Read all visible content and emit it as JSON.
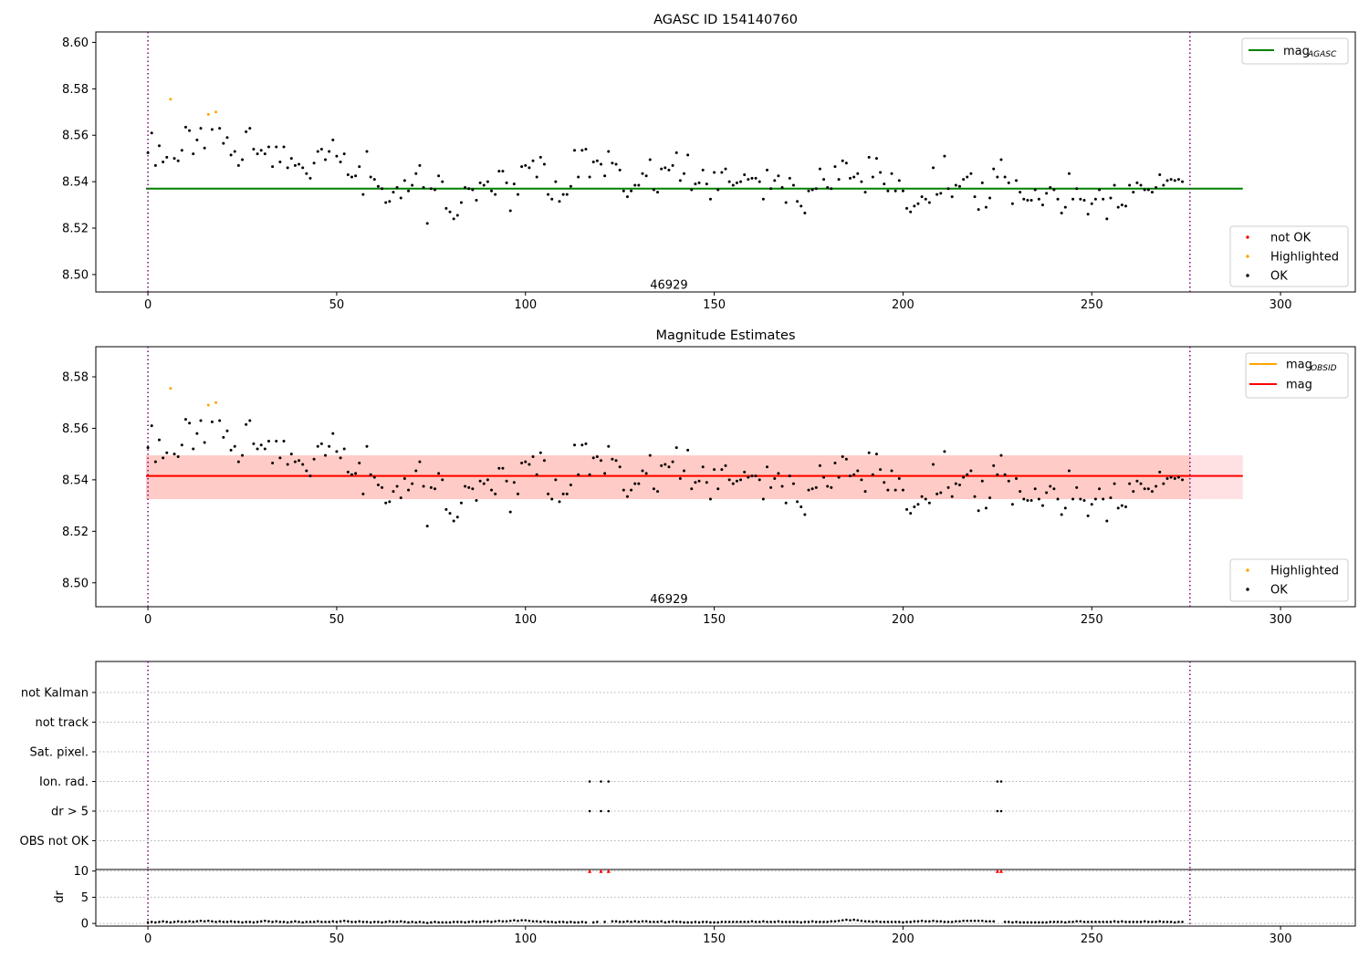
{
  "chart_data": [
    {
      "type": "scatter",
      "title": "AGASC ID 154140760",
      "xlim": [
        -13.8,
        319.8
      ],
      "ylim": [
        8.4925,
        8.6045
      ],
      "xticks": [
        0,
        50,
        100,
        150,
        200,
        250,
        300
      ],
      "xtick_labels": [
        "0",
        "50",
        "100",
        "150",
        "200",
        "250",
        "300"
      ],
      "yticks": [
        8.5,
        8.52,
        8.54,
        8.56,
        8.58,
        8.6
      ],
      "ytick_labels": [
        "8.50",
        "8.52",
        "8.54",
        "8.56",
        "8.58",
        "8.60"
      ],
      "annotations": [
        {
          "text": "46929",
          "x": 138,
          "y": 8.4955
        }
      ],
      "vlines": [
        0,
        276
      ],
      "hline": {
        "name": "mag AGASC",
        "value": 8.537,
        "color": "#008000",
        "x": [
          -0.5,
          290
        ]
      },
      "legend_lines": [
        {
          "label": "mag",
          "sub": "AGASC",
          "color": "#008000"
        }
      ],
      "legend_points": [
        {
          "label": "not OK",
          "color": "#ff0000"
        },
        {
          "label": "Highlighted",
          "color": "#ffa500"
        },
        {
          "label": "OK",
          "color": "#000000"
        }
      ],
      "series": [
        {
          "name": "OK",
          "color": "#000000",
          "x": [],
          "y": []
        },
        {
          "name": "Highlighted",
          "color": "#ffa500",
          "x": [
            6,
            16,
            18
          ],
          "y": [
            8.5755,
            8.569,
            8.57
          ]
        }
      ]
    },
    {
      "type": "scatter",
      "title": "Magnitude Estimates",
      "xlim": [
        -13.8,
        319.8
      ],
      "ylim": [
        8.4907,
        8.5917
      ],
      "xticks": [
        0,
        50,
        100,
        150,
        200,
        250,
        300
      ],
      "xtick_labels": [
        "0",
        "50",
        "100",
        "150",
        "200",
        "250",
        "300"
      ],
      "yticks": [
        8.5,
        8.52,
        8.54,
        8.56,
        8.58
      ],
      "ytick_labels": [
        "8.50",
        "8.52",
        "8.54",
        "8.56",
        "8.58"
      ],
      "annotations": [
        {
          "text": "46929",
          "x": 138,
          "y": 8.4935
        }
      ],
      "vlines": [
        0,
        276
      ],
      "lines": [
        {
          "name": "mag OBSID",
          "value": 8.5415,
          "color": "#ffa500",
          "x": [
            -0.5,
            276
          ]
        },
        {
          "name": "mag",
          "value": 8.5415,
          "color": "#ff0000",
          "x": [
            -0.5,
            290
          ]
        }
      ],
      "bands": [
        {
          "color": "#ffa07a",
          "opacity": 0.28,
          "x": [
            -0.5,
            276
          ],
          "y": [
            8.5325,
            8.5495
          ]
        },
        {
          "color": "#ff7080",
          "opacity": 0.22,
          "x": [
            -0.5,
            290
          ],
          "y": [
            8.5325,
            8.5495
          ]
        }
      ],
      "legend_lines": [
        {
          "label": "mag",
          "sub": "OBSID",
          "color": "#ffa500"
        },
        {
          "label": "mag",
          "sub": "",
          "color": "#ff0000"
        }
      ],
      "legend_points": [
        {
          "label": "Highlighted",
          "color": "#ffa500"
        },
        {
          "label": "OK",
          "color": "#000000"
        }
      ],
      "series": [
        {
          "name": "OK",
          "color": "#000000",
          "x": [],
          "y": []
        },
        {
          "name": "Highlighted",
          "color": "#ffa500",
          "x": [
            6,
            16,
            18
          ],
          "y": [
            8.5755,
            8.569,
            8.57
          ]
        }
      ]
    },
    {
      "type": "scatter",
      "title": "",
      "xlim": [
        -13.8,
        319.8
      ],
      "categories": [
        "OBS not OK",
        "dr > 5",
        "Ion. rad.",
        "Sat. pixel.",
        "not track",
        "not Kalman"
      ],
      "vlines": [
        0,
        276
      ],
      "series": [
        {
          "name": "dr > 5",
          "color": "#000000",
          "x": [
            117,
            120,
            122,
            225,
            226
          ]
        },
        {
          "name": "Ion. rad.",
          "color": "#000000",
          "x": [
            117,
            120,
            122,
            225,
            226
          ]
        }
      ]
    },
    {
      "type": "scatter",
      "title": "",
      "ylabel": "dr",
      "xlim": [
        -13.8,
        319.8
      ],
      "ylim": [
        -0.5,
        10.3
      ],
      "xticks": [
        0,
        50,
        100,
        150,
        200,
        250,
        300
      ],
      "xtick_labels": [
        "0",
        "50",
        "100",
        "150",
        "200",
        "250",
        "300"
      ],
      "yticks": [
        0,
        5,
        10
      ],
      "ytick_labels": [
        "0",
        "5",
        "10"
      ],
      "vlines": [
        0,
        276
      ],
      "series": [
        {
          "name": "dr",
          "color": "#000000",
          "x": [],
          "y": []
        },
        {
          "name": "dr > 10",
          "color": "#ff0000",
          "marker": "triangle",
          "x": [
            117,
            120,
            122,
            225,
            226
          ],
          "y": [
            10,
            10,
            10,
            10,
            10
          ]
        }
      ]
    }
  ],
  "mag_series": [
    8.5525,
    8.561,
    8.547,
    8.5555,
    8.5485,
    8.5505,
    8.5555,
    8.55,
    8.549,
    8.5535,
    8.5635,
    8.562,
    8.552,
    8.558,
    8.563,
    8.5545,
    8.556,
    8.5625,
    8.559,
    8.563,
    8.5565,
    8.559,
    8.5515,
    8.553,
    8.547,
    8.5495,
    8.5615,
    8.563,
    8.554,
    8.552,
    8.5535,
    8.552,
    8.555,
    8.5465,
    8.555,
    8.5485,
    8.555,
    8.546,
    8.55,
    8.547,
    8.5475,
    8.546,
    8.5435,
    8.5415,
    8.548,
    8.553,
    8.554,
    8.5495,
    8.553,
    8.558,
    8.551,
    8.5485,
    8.552,
    8.543,
    8.542,
    8.5425,
    8.5465,
    8.5345,
    8.553,
    8.542,
    8.541,
    8.538,
    8.537,
    8.531,
    8.5315,
    8.5355,
    8.5375,
    8.533,
    8.5405,
    8.536,
    8.5385,
    8.5435,
    8.547,
    8.5375,
    8.522,
    8.537,
    8.5365,
    8.5425,
    8.54,
    8.5285,
    8.527,
    8.524,
    8.5255,
    8.531,
    8.5375,
    8.537,
    8.5365,
    8.532,
    8.5395,
    8.5385,
    8.54,
    8.536,
    8.5345,
    8.5445,
    8.5445,
    8.5395,
    8.5275,
    8.539,
    8.5345,
    8.5465,
    8.547,
    8.546,
    8.549,
    8.542,
    8.5505,
    8.5475,
    8.5345,
    8.5325,
    8.54,
    8.5315,
    8.5345,
    8.5345,
    8.538,
    8.5535,
    8.542,
    8.5535,
    8.554,
    8.542,
    8.5485,
    8.549,
    8.5475,
    8.5425,
    8.553,
    8.548,
    8.5475,
    8.545,
    8.536,
    8.5335,
    8.536,
    8.5385,
    8.5385,
    8.5435,
    8.5425,
    8.5495,
    8.5365,
    8.5355,
    8.5455,
    8.546,
    8.545,
    8.547,
    8.5525,
    8.5405,
    8.5435,
    8.5515,
    8.5365,
    8.539,
    8.5395,
    8.545,
    8.539,
    8.5325,
    8.544,
    8.5365,
    8.544,
    8.5455,
    8.54,
    8.5385,
    8.5395,
    8.54,
    8.543,
    8.541,
    8.5415,
    8.5415,
    8.54,
    8.5325,
    8.545,
    8.537,
    8.5405,
    8.5425,
    8.5375,
    8.531,
    8.5415,
    8.5385,
    8.5315,
    8.5295,
    8.5265,
    8.536,
    8.5365,
    8.537,
    8.5455,
    8.541,
    8.5375,
    8.537,
    8.5465,
    8.541,
    8.549,
    8.548,
    8.5415,
    8.542,
    8.5435,
    8.54,
    8.5355,
    8.5505,
    8.542,
    8.55,
    8.544,
    8.539,
    8.536,
    8.5435,
    8.536,
    8.5405,
    8.536,
    8.5285,
    8.527,
    8.5295,
    8.5305,
    8.5335,
    8.5325,
    8.531,
    8.546,
    8.5345,
    8.535,
    8.551,
    8.537,
    8.5335,
    8.5385,
    8.538,
    8.541,
    8.542,
    8.5435,
    8.5335,
    8.528,
    8.5395,
    8.529,
    8.533,
    8.5455,
    8.542,
    8.5495,
    8.542,
    8.5395,
    8.5305,
    8.5405,
    8.5355,
    8.5325,
    8.532,
    8.532,
    8.5365,
    8.5325,
    8.53,
    8.535,
    8.5375,
    8.5365,
    8.5325,
    8.5265,
    8.529,
    8.5435,
    8.5325,
    8.537,
    8.5325,
    8.532,
    8.526,
    8.5305,
    8.5325,
    8.5365,
    8.5325,
    8.524,
    8.533,
    8.5385,
    8.529,
    8.53,
    8.5295,
    8.5385,
    8.5355,
    8.5395,
    8.5385,
    8.5365,
    8.5365,
    8.5355,
    8.5375,
    8.543,
    8.5385,
    8.5405,
    8.541,
    8.5405,
    8.541,
    8.54
  ],
  "dr_series": [
    0.2,
    0.3,
    0.2,
    0.3,
    0.4,
    0.3,
    0.2,
    0.3,
    0.4,
    0.3,
    0.3,
    0.4,
    0.3,
    0.4,
    0.5,
    0.4,
    0.5,
    0.4,
    0.3,
    0.4,
    0.3,
    0.3,
    0.4,
    0.3,
    0.3,
    0.2,
    0.3,
    0.3,
    0.2,
    0.3,
    0.4,
    0.5,
    0.4,
    0.3,
    0.4,
    0.3,
    0.3,
    0.2,
    0.3,
    0.4,
    0.3,
    0.2,
    0.3,
    0.3,
    0.3,
    0.4,
    0.3,
    0.3,
    0.3,
    0.4,
    0.3,
    0.4,
    0.5,
    0.4,
    0.3,
    0.3,
    0.4,
    0.3,
    0.3,
    0.2,
    0.3,
    0.3,
    0.2,
    0.3,
    0.4,
    0.3,
    0.3,
    0.4,
    0.3,
    0.2,
    0.3,
    0.2,
    0.3,
    0.2,
    0.1,
    0.2,
    0.3,
    0.2,
    0.2,
    0.2,
    0.2,
    0.3,
    0.3,
    0.3,
    0.2,
    0.3,
    0.4,
    0.3,
    0.3,
    0.4,
    0.4,
    0.3,
    0.4,
    0.5,
    0.4,
    0.4,
    0.5,
    0.6,
    0.5,
    0.6,
    0.6,
    0.5,
    0.4,
    0.4,
    0.3,
    0.4,
    0.3,
    0.3,
    0.2,
    0.3,
    0.3,
    0.2,
    0.3,
    0.2,
    0.2,
    0.3,
    0.2,
    0.3,
    0.2,
    0.3,
    0.3,
    0.3,
    0.3,
    0.4,
    0.4,
    0.3,
    0.3,
    0.4,
    0.3,
    0.4,
    0.3,
    0.4,
    0.4,
    0.3,
    0.3,
    0.3,
    0.4,
    0.2,
    0.3,
    0.4,
    0.3,
    0.3,
    0.2,
    0.2,
    0.2,
    0.3,
    0.2,
    0.3,
    0.3,
    0.2,
    0.2,
    0.2,
    0.3,
    0.3,
    0.3,
    0.3,
    0.3,
    0.3,
    0.3,
    0.3,
    0.4,
    0.3,
    0.3,
    0.4,
    0.3,
    0.3,
    0.3,
    0.4,
    0.3,
    0.3,
    0.3,
    0.3,
    0.3,
    0.2,
    0.3,
    0.3,
    0.4,
    0.3,
    0.3,
    0.3,
    0.3,
    0.4,
    0.4,
    0.5,
    0.6,
    0.7,
    0.6,
    0.7,
    0.6,
    0.5,
    0.4,
    0.4,
    0.3,
    0.4,
    0.3,
    0.3,
    0.3,
    0.3,
    0.3,
    0.3,
    0.2,
    0.3,
    0.3,
    0.4,
    0.4,
    0.5,
    0.4,
    0.4,
    0.5,
    0.4,
    0.4,
    0.3,
    0.3,
    0.3,
    0.4,
    0.4,
    0.5,
    0.5,
    0.5,
    0.5,
    0.5,
    0.5,
    0.4,
    0.4,
    0.4,
    0.3,
    0.2,
    0.3,
    0.3,
    0.2,
    0.3,
    0.2,
    0.2,
    0.2,
    0.2,
    0.2,
    0.2,
    0.2,
    0.2,
    0.3,
    0.3,
    0.3,
    0.3,
    0.2,
    0.3,
    0.3,
    0.4,
    0.4,
    0.3,
    0.3,
    0.3,
    0.3,
    0.3,
    0.3,
    0.3,
    0.3,
    0.4,
    0.3,
    0.4,
    0.3,
    0.3,
    0.3,
    0.3,
    0.3,
    0.4,
    0.3,
    0.3,
    0.3,
    0.4,
    0.3,
    0.3,
    0.3,
    0.2,
    0.3,
    0.3
  ],
  "dr_gap_indices": [
    117,
    120,
    122,
    225,
    226
  ]
}
